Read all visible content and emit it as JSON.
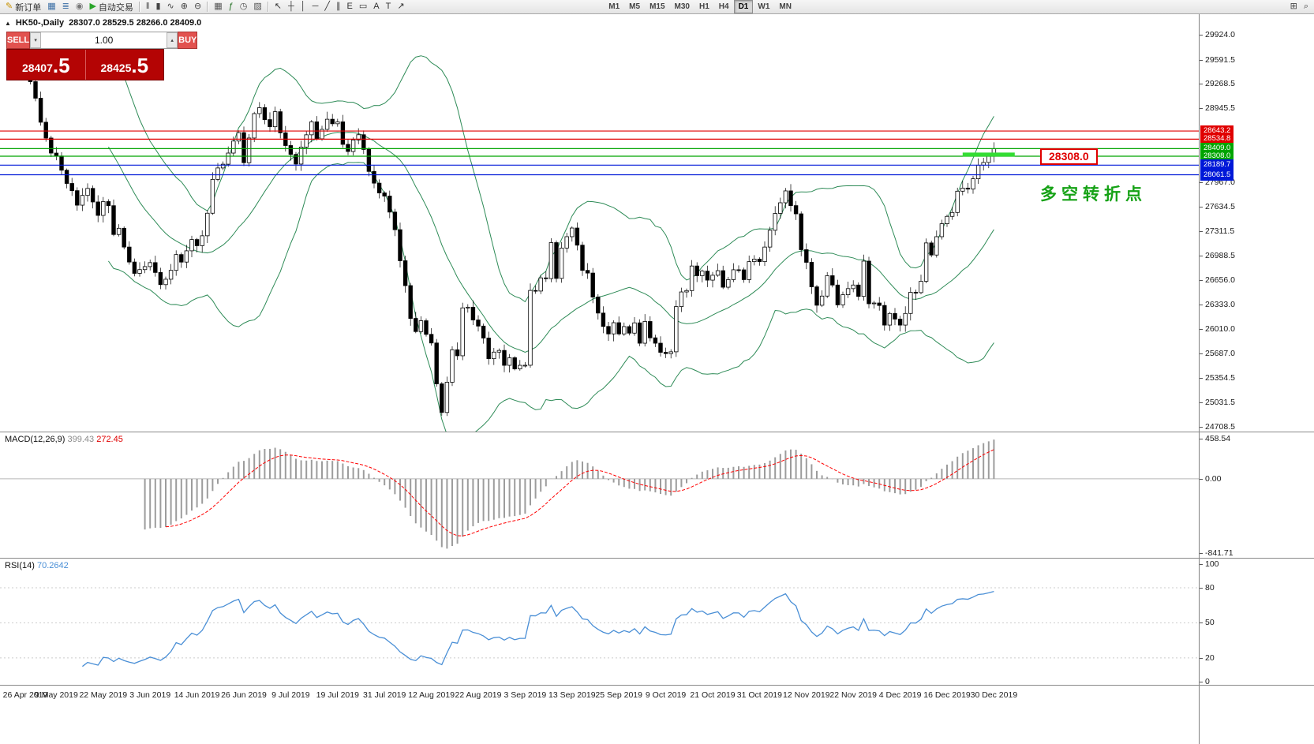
{
  "toolbar": {
    "left_buttons": [
      {
        "name": "new-order",
        "icon": "✎",
        "icon_color": "#c79100",
        "label": "新订单"
      },
      {
        "name": "chart-window",
        "icon": "▦",
        "icon_color": "#3a6ea5",
        "label": ""
      },
      {
        "name": "market-depth",
        "icon": "≣",
        "icon_color": "#3a6ea5",
        "label": ""
      },
      {
        "name": "alerts",
        "icon": "◉",
        "icon_color": "#777777",
        "label": ""
      },
      {
        "name": "auto-trading",
        "icon": "▶",
        "icon_color": "#2aa52a",
        "label": "自动交易"
      }
    ],
    "chart_type_buttons": [
      {
        "name": "bar-chart",
        "icon": "‖",
        "icon_color": "#444444"
      },
      {
        "name": "candlestick-chart",
        "icon": "▮",
        "icon_color": "#444444"
      },
      {
        "name": "line-chart",
        "icon": "∿",
        "icon_color": "#444444"
      },
      {
        "name": "zoom-in",
        "icon": "⊕",
        "icon_color": "#444444"
      },
      {
        "name": "zoom-out",
        "icon": "⊖",
        "icon_color": "#444444"
      }
    ],
    "window_buttons": [
      {
        "name": "tile-windows",
        "icon": "▦",
        "icon_color": "#555555"
      },
      {
        "name": "indicators",
        "icon": "ƒ",
        "icon_color": "#1f6e1f"
      },
      {
        "name": "period-settings",
        "icon": "◷",
        "icon_color": "#555555"
      },
      {
        "name": "templates",
        "icon": "▨",
        "icon_color": "#555555"
      }
    ],
    "draw_buttons": [
      {
        "name": "cursor",
        "icon": "↖",
        "icon_color": "#333333"
      },
      {
        "name": "crosshair",
        "icon": "┼",
        "icon_color": "#333333"
      },
      {
        "name": "vertical-line",
        "icon": "│",
        "icon_color": "#333333"
      },
      {
        "name": "horizontal-line",
        "icon": "─",
        "icon_color": "#333333"
      },
      {
        "name": "trendline",
        "icon": "╱",
        "icon_color": "#333333"
      },
      {
        "name": "equidistant-channel",
        "icon": "∥",
        "icon_color": "#333333"
      },
      {
        "name": "fibonacci-retracement",
        "icon": "E",
        "icon_color": "#333333"
      },
      {
        "name": "shapes",
        "icon": "▭",
        "icon_color": "#333333"
      },
      {
        "name": "text",
        "icon": "A",
        "icon_color": "#333333"
      },
      {
        "name": "text-label",
        "icon": "T",
        "icon_color": "#333333"
      },
      {
        "name": "arrows",
        "icon": "↗",
        "icon_color": "#333333"
      }
    ],
    "timeframes": {
      "items": [
        "M1",
        "M5",
        "M15",
        "M30",
        "H1",
        "H4",
        "D1",
        "W1",
        "MN"
      ],
      "active": "D1"
    },
    "right_buttons": [
      {
        "name": "new-chart",
        "icon": "⊞",
        "icon_color": "#444444"
      },
      {
        "name": "search",
        "icon": "⌕",
        "icon_color": "#444444"
      }
    ]
  },
  "chart": {
    "toggle_icon": "▲",
    "title_symbol": "HK50-,Daily",
    "title_ohlc": "28307.0 28529.5 28266.0 28409.0",
    "trade_panel": {
      "sell_label": "SELL",
      "buy_label": "BUY",
      "volume": "1.00",
      "vol_down_icon": "▾",
      "vol_up_icon": "▴",
      "sell_price": "28407.5",
      "buy_price": "28425.5",
      "sell_price_main": "28407",
      "sell_price_pip": ".5",
      "buy_price_main": "28425",
      "buy_price_pip": ".5"
    },
    "annotation_text": "多空转折点",
    "price_flag_text": "28308.0"
  },
  "chart_data": {
    "type": "candlestick",
    "symbol": "HK50-",
    "timeframe": "Daily",
    "current_bar": {
      "open": 28307.0,
      "high": 28529.5,
      "low": 28266.0,
      "close": 28409.0
    },
    "x_labels": [
      "26 Apr 2019",
      "9 May 2019",
      "22 May 2019",
      "3 Jun 2019",
      "14 Jun 2019",
      "26 Jun 2019",
      "9 Jul 2019",
      "19 Jul 2019",
      "31 Jul 2019",
      "12 Aug 2019",
      "22 Aug 2019",
      "3 Sep 2019",
      "13 Sep 2019",
      "25 Sep 2019",
      "9 Oct 2019",
      "21 Oct 2019",
      "31 Oct 2019",
      "12 Nov 2019",
      "22 Nov 2019",
      "4 Dec 2019",
      "16 Dec 2019",
      "30 Dec 2019"
    ],
    "bars_per_label": 9,
    "open_first": 29650,
    "closes": [
      29600,
      29780,
      29660,
      29450,
      29300,
      29080,
      28760,
      28550,
      28350,
      28311,
      28122,
      27946,
      27850,
      27657,
      27787,
      27880,
      27700,
      27521,
      27705,
      27650,
      27267,
      27350,
      27100,
      26901,
      26750,
      26800,
      26840,
      26893,
      26762,
      26600,
      26672,
      26790,
      27000,
      26900,
      27050,
      27200,
      27118,
      27250,
      27550,
      28000,
      28152,
      28202,
      28350,
      28510,
      28622,
      28222,
      28550,
      28875,
      28954,
      28795,
      28700,
      28900,
      28620,
      28450,
      28332,
      28204,
      28430,
      28593,
      28765,
      28540,
      28665,
      28800,
      28740,
      28765,
      28466,
      28371,
      28524,
      28594,
      28398,
      28106,
      27950,
      27820,
      27778,
      27565,
      27331,
      26918,
      26587,
      26151,
      25976,
      26120,
      25939,
      25824,
      25281,
      24900,
      25302,
      25734,
      25654,
      26291,
      26300,
      26130,
      26049,
      25890,
      25615,
      25703,
      25725,
      25527,
      25628,
      25480,
      25527,
      25528,
      26523,
      26515,
      26690,
      26681,
      27159,
      26683,
      27087,
      27238,
      27353,
      27125,
      26790,
      26754,
      26435,
      26222,
      26044,
      25945,
      26094,
      25945,
      26042,
      25955,
      26092,
      25821,
      26110,
      25893,
      25821,
      25700,
      25683,
      25707,
      26308,
      26503,
      26521,
      26848,
      26719,
      26780,
      26660,
      26725,
      26786,
      26566,
      26667,
      26798,
      26797,
      26667,
      26906,
      26940,
      26906,
      27100,
      27323,
      27547,
      27689,
      27847,
      27651,
      27542,
      27065,
      26897,
      26571,
      26326,
      26448,
      26719,
      26595,
      26331,
      26466,
      26547,
      26595,
      26444,
      26913,
      26346,
      26356,
      26323,
      26062,
      26217,
      26142,
      26062,
      26217,
      26498,
      26494,
      26645,
      27155,
      26994,
      27238,
      27410,
      27508,
      27560,
      27843,
      27884,
      27871,
      28008,
      28189,
      28225,
      28307,
      28409
    ],
    "y_axis_ticks": [
      29924.0,
      29591.5,
      29268.5,
      28945.5,
      27967.0,
      27634.5,
      27311.5,
      26988.5,
      26656.0,
      26333.0,
      26010.0,
      25687.0,
      25354.5,
      25031.5,
      24708.5
    ],
    "hlines": [
      {
        "price": 28643.2,
        "label": "28643.2",
        "color": "#e00000"
      },
      {
        "price": 28534.8,
        "label": "28534.8",
        "color": "#e00000"
      },
      {
        "price": 28409.0,
        "label": "28409.0",
        "color": "#00a400"
      },
      {
        "price": 28308.0,
        "label": "28308.0",
        "color": "#00a400"
      },
      {
        "price": 28189.7,
        "label": "28189.7",
        "color": "#0018d8"
      },
      {
        "price": 28061.5,
        "label": "28061.5",
        "color": "#0018d8"
      }
    ],
    "highlight_segment": {
      "bar_start": 183,
      "bar_end": 193,
      "price": 28330,
      "color": "#33dd33",
      "width": 5
    },
    "bollinger": {
      "period": 20,
      "deviation": 2,
      "color": "#2e8b57"
    },
    "macd": {
      "label": "MACD(12,26,9)",
      "value_main": "399.43",
      "value_signal": "272.45",
      "fast": 12,
      "slow": 26,
      "signal": 9,
      "axis_labels": [
        "458.54",
        "0.00",
        "-841.71"
      ],
      "hist_color": "#9c9c9c",
      "signal_color": "#ff0000"
    },
    "rsi": {
      "label": "RSI(14)",
      "value": "70.2642",
      "period": 14,
      "axis_labels": [
        "100",
        "80",
        "50",
        "20",
        "0"
      ],
      "levels": [
        80,
        50,
        20
      ],
      "color": "#4a8fd6"
    }
  }
}
